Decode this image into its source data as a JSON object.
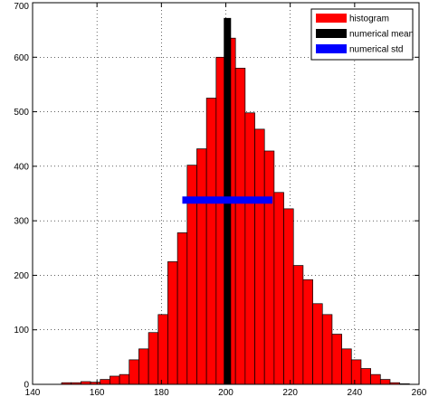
{
  "chart_data": {
    "type": "bar",
    "bin_width": 3,
    "bins": [
      {
        "start": 149,
        "count": 3
      },
      {
        "start": 152,
        "count": 3
      },
      {
        "start": 155,
        "count": 5
      },
      {
        "start": 158,
        "count": 4
      },
      {
        "start": 161,
        "count": 9
      },
      {
        "start": 164,
        "count": 15
      },
      {
        "start": 167,
        "count": 18
      },
      {
        "start": 170,
        "count": 45
      },
      {
        "start": 173,
        "count": 65
      },
      {
        "start": 176,
        "count": 95
      },
      {
        "start": 179,
        "count": 128
      },
      {
        "start": 182,
        "count": 225
      },
      {
        "start": 185,
        "count": 278
      },
      {
        "start": 188,
        "count": 402
      },
      {
        "start": 191,
        "count": 432
      },
      {
        "start": 194,
        "count": 525
      },
      {
        "start": 197,
        "count": 600
      },
      {
        "start": 200,
        "count": 635
      },
      {
        "start": 203,
        "count": 580
      },
      {
        "start": 206,
        "count": 498
      },
      {
        "start": 209,
        "count": 468
      },
      {
        "start": 212,
        "count": 428
      },
      {
        "start": 215,
        "count": 352
      },
      {
        "start": 218,
        "count": 322
      },
      {
        "start": 221,
        "count": 218
      },
      {
        "start": 224,
        "count": 192
      },
      {
        "start": 227,
        "count": 148
      },
      {
        "start": 230,
        "count": 128
      },
      {
        "start": 233,
        "count": 92
      },
      {
        "start": 236,
        "count": 65
      },
      {
        "start": 239,
        "count": 45
      },
      {
        "start": 242,
        "count": 29
      },
      {
        "start": 245,
        "count": 18
      },
      {
        "start": 248,
        "count": 9
      },
      {
        "start": 251,
        "count": 3
      },
      {
        "start": 254,
        "count": 1
      }
    ],
    "mean": 200.5,
    "mean_height": 672,
    "std": 14,
    "std_level": 338,
    "xlim": [
      140,
      260
    ],
    "ylim": [
      0,
      700
    ],
    "xticks": [
      140,
      160,
      180,
      200,
      220,
      240,
      260
    ],
    "yticks": [
      0,
      100,
      200,
      300,
      400,
      500,
      600,
      700
    ],
    "grid": true,
    "legend_position": "top-right",
    "legend": [
      {
        "label": "histogram",
        "color": "#ff0000"
      },
      {
        "label": "numerical mean",
        "color": "#000000"
      },
      {
        "label": "numerical std",
        "color": "#0000ff"
      }
    ],
    "colors": {
      "bar": "#ff0000",
      "mean": "#000000",
      "std": "#0000ff"
    }
  }
}
